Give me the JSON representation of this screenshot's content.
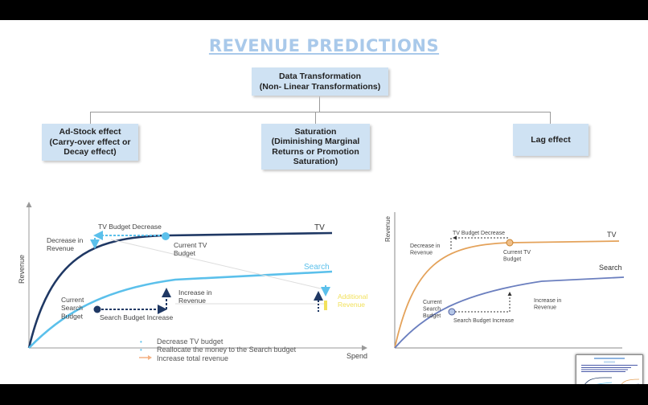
{
  "slide_title": "REVENUE PREDICTIONS",
  "root_box": "Data Transformation\n(Non- Linear Transformations)",
  "children": [
    "Ad-Stock effect\n(Carry-over effect or\nDecay effect)",
    "Saturation\n(Diminishing Marginal\nReturns or Promotion\nSaturation)",
    "Lag effect"
  ],
  "left_chart": {
    "xlabel": "Spend",
    "ylabel": "Revenue",
    "series": [
      {
        "name": "TV",
        "color": "#1f3864"
      },
      {
        "name": "Search",
        "color": "#5bc0eb"
      }
    ],
    "annotations": {
      "tv_budget_decrease": "TV Budget Decrease",
      "decrease_in_revenue": "Decrease in\nRevenue",
      "current_tv_budget": "Current TV\nBudget",
      "current_search_budget": "Current\nSearch\nBudget",
      "search_budget_increase": "Search Budget Increase",
      "increase_in_revenue": "Increase in\nRevenue",
      "additional_revenue": "Additional\nRevenue"
    },
    "legend": [
      {
        "text": "Decrease TV budget",
        "marker": "dot",
        "color": "#5bc0eb"
      },
      {
        "text": "Reallocate the money to the Search budget",
        "marker": "dot",
        "color": "#5bc0eb"
      },
      {
        "text": "Increase total revenue",
        "marker": "arrow",
        "color": "#f4b183"
      }
    ]
  },
  "right_chart": {
    "ylabel": "Revenue",
    "series": [
      {
        "name": "TV",
        "color": "#e4a25a"
      },
      {
        "name": "Search",
        "color": "#6b7fbf"
      }
    ],
    "annotations": {
      "tv_budget_decrease": "TV Budget Decrease",
      "decrease_in_revenue": "Decrease in\nRevenue",
      "current_tv_budget": "Current TV\nBudget",
      "current_search_budget": "Current\nSearch\nBudget",
      "search_budget_increase": "Search Budget Increase",
      "increase_in_revenue": "Increase in\nRevenue"
    }
  }
}
